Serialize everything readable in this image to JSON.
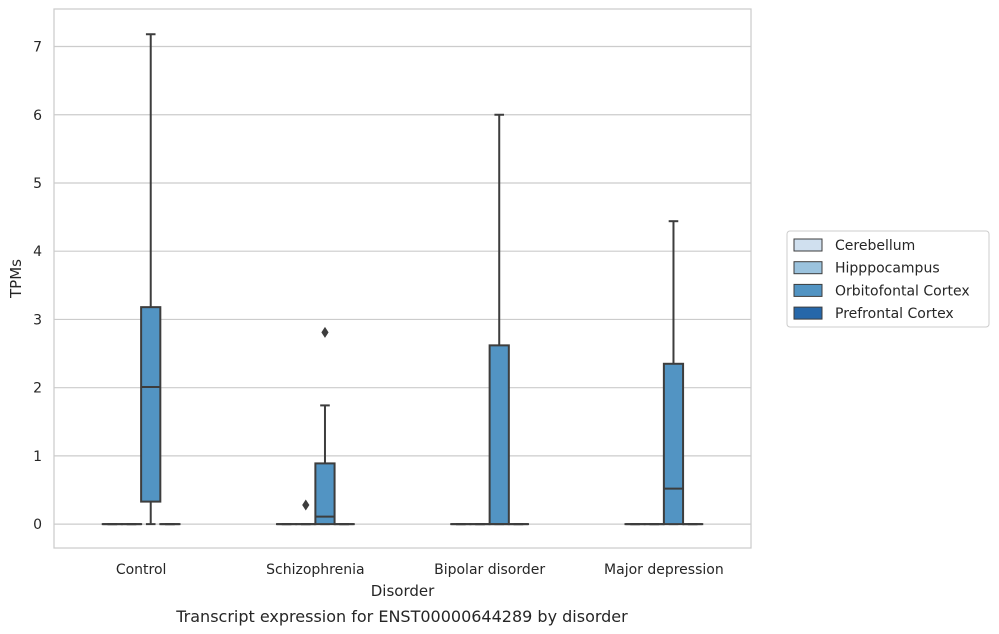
{
  "chart_data": {
    "type": "box",
    "xlabel": "Disorder",
    "ylabel": "TPMs",
    "caption": "Transcript expression for ENST00000644289 by disorder",
    "categories": [
      "Control",
      "Schizophrenia",
      "Bipolar disorder",
      "Major depression"
    ],
    "ylim": [
      -0.35,
      7.55
    ],
    "yticks": [
      0,
      1,
      2,
      3,
      4,
      5,
      6,
      7
    ],
    "grid": "horizontal",
    "legend_placement": "right",
    "colors": {
      "Cerebellum": "#d0e0ef",
      "Hipppocampus": "#9bc3de",
      "Orbitofontal Cortex": "#5294c3",
      "Prefrontal Cortex": "#2667a9"
    },
    "series": [
      {
        "name": "Cerebellum",
        "boxes": [
          {
            "q1": 0,
            "median": 0,
            "q3": 0,
            "whisker_low": 0,
            "whisker_high": 0,
            "outliers": []
          },
          {
            "q1": 0,
            "median": 0,
            "q3": 0,
            "whisker_low": 0,
            "whisker_high": 0,
            "outliers": []
          },
          {
            "q1": 0,
            "median": 0,
            "q3": 0,
            "whisker_low": 0,
            "whisker_high": 0,
            "outliers": []
          },
          {
            "q1": 0,
            "median": 0,
            "q3": 0,
            "whisker_low": 0,
            "whisker_high": 0,
            "outliers": []
          }
        ]
      },
      {
        "name": "Hipppocampus",
        "boxes": [
          {
            "q1": 0,
            "median": 0,
            "q3": 0,
            "whisker_low": 0,
            "whisker_high": 0,
            "outliers": []
          },
          {
            "q1": 0,
            "median": 0,
            "q3": 0,
            "whisker_low": 0,
            "whisker_high": 0,
            "outliers": [
              0.28
            ]
          },
          {
            "q1": 0,
            "median": 0,
            "q3": 0,
            "whisker_low": 0,
            "whisker_high": 0,
            "outliers": []
          },
          {
            "q1": 0,
            "median": 0,
            "q3": 0,
            "whisker_low": 0,
            "whisker_high": 0,
            "outliers": []
          }
        ]
      },
      {
        "name": "Orbitofontal Cortex",
        "boxes": [
          {
            "q1": 0.33,
            "median": 2.01,
            "q3": 3.18,
            "whisker_low": 0,
            "whisker_high": 7.18,
            "outliers": []
          },
          {
            "q1": 0,
            "median": 0.11,
            "q3": 0.89,
            "whisker_low": 0,
            "whisker_high": 1.74,
            "outliers": [
              2.81
            ]
          },
          {
            "q1": 0,
            "median": 0,
            "q3": 2.62,
            "whisker_low": 0,
            "whisker_high": 6.0,
            "outliers": []
          },
          {
            "q1": 0,
            "median": 0.52,
            "q3": 2.35,
            "whisker_low": 0,
            "whisker_high": 4.44,
            "outliers": []
          }
        ]
      },
      {
        "name": "Prefrontal Cortex",
        "boxes": [
          {
            "q1": 0,
            "median": 0,
            "q3": 0,
            "whisker_low": 0,
            "whisker_high": 0,
            "outliers": []
          },
          {
            "q1": 0,
            "median": 0,
            "q3": 0,
            "whisker_low": 0,
            "whisker_high": 0,
            "outliers": []
          },
          {
            "q1": 0,
            "median": 0,
            "q3": 0,
            "whisker_low": 0,
            "whisker_high": 0,
            "outliers": []
          },
          {
            "q1": 0,
            "median": 0,
            "q3": 0,
            "whisker_low": 0,
            "whisker_high": 0,
            "outliers": []
          }
        ]
      }
    ]
  }
}
